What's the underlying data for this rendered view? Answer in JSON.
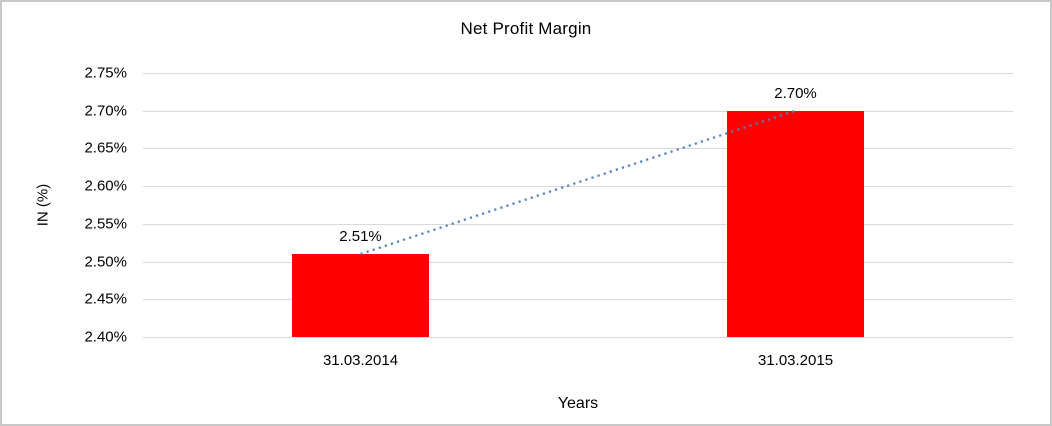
{
  "frame": {
    "border_color": "#c8c8c8",
    "background_color": "#ffffff"
  },
  "chart_data": {
    "type": "bar",
    "title": "Net Profit Margin",
    "xlabel": "Years",
    "ylabel": "IN (%)",
    "categories": [
      "31.03.2014",
      "31.03.2015"
    ],
    "series": [
      {
        "name": "Net Profit Margin",
        "values": [
          2.51,
          2.7
        ],
        "data_labels": [
          "2.51%",
          "2.70%"
        ],
        "color": "#ff0000"
      }
    ],
    "ylim": [
      2.4,
      2.75
    ],
    "y_tick_step": 0.05,
    "y_tick_labels": [
      "2.75%",
      "2.70%",
      "2.65%",
      "2.60%",
      "2.55%",
      "2.50%",
      "2.45%",
      "2.40%"
    ],
    "grid": true,
    "gridline_color": "#d9d9d9",
    "legend_position": "none",
    "trendline": {
      "type": "linear",
      "style": "dotted",
      "color": "#4f81bd",
      "connects_values": [
        2.51,
        2.7
      ]
    }
  }
}
